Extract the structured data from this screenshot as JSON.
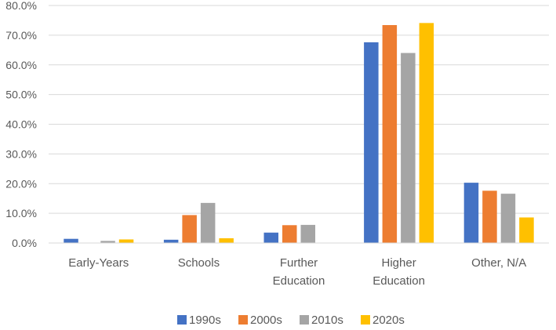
{
  "chart_data": {
    "type": "bar",
    "title": "",
    "xlabel": "",
    "ylabel": "",
    "categories": [
      "Early-Years",
      "Schools",
      "Further Education",
      "Higher Education",
      "Other, N/A"
    ],
    "category_lines": [
      [
        "Early-Years"
      ],
      [
        "Schools"
      ],
      [
        "Further",
        "Education"
      ],
      [
        "Higher",
        "Education"
      ],
      [
        "Other, N/A"
      ]
    ],
    "series": [
      {
        "name": "1990s",
        "color": "#4472C4",
        "values": [
          1.4,
          1.1,
          3.5,
          67.6,
          20.3
        ]
      },
      {
        "name": "2000s",
        "color": "#ED7D31",
        "values": [
          0.0,
          9.4,
          6.0,
          73.4,
          17.6
        ]
      },
      {
        "name": "2010s",
        "color": "#A5A5A5",
        "values": [
          0.7,
          13.5,
          6.1,
          64.0,
          16.6
        ]
      },
      {
        "name": "2020s",
        "color": "#FFC000",
        "values": [
          1.2,
          1.6,
          0.0,
          74.1,
          8.6
        ]
      }
    ],
    "ylim": [
      0,
      80
    ],
    "yticks": [
      0,
      10,
      20,
      30,
      40,
      50,
      60,
      70,
      80
    ],
    "ytick_labels": [
      "0.0%",
      "10.0%",
      "20.0%",
      "30.0%",
      "40.0%",
      "50.0%",
      "60.0%",
      "70.0%",
      "80.0%"
    ],
    "grid": true,
    "legend_position": "bottom-center"
  }
}
